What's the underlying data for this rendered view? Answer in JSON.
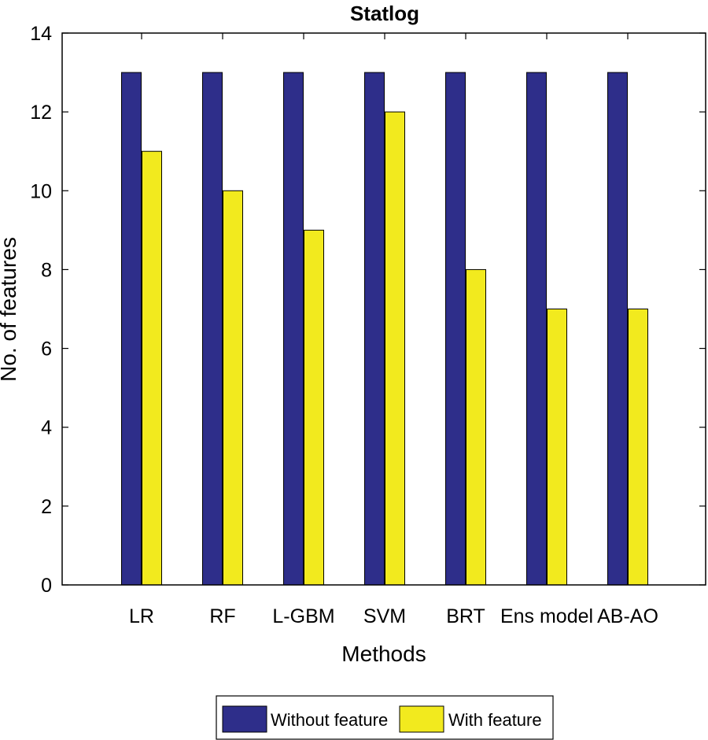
{
  "chart_data": {
    "type": "bar",
    "title": "Statlog",
    "xlabel": "Methods",
    "ylabel": "No. of features",
    "categories": [
      "LR",
      "RF",
      "L-GBM",
      "SVM",
      "BRT",
      "Ens model",
      "AB-AO"
    ],
    "series": [
      {
        "name": "Without feature",
        "values": [
          13,
          13,
          13,
          13,
          13,
          13,
          13
        ],
        "color": "#2e2e8a"
      },
      {
        "name": "With feature",
        "values": [
          11,
          10,
          9,
          12,
          8,
          7,
          7
        ],
        "color": "#f2ea1e"
      }
    ],
    "ylim": [
      0,
      14
    ],
    "yticks": [
      0,
      2,
      4,
      6,
      8,
      10,
      12,
      14
    ],
    "grid": false,
    "legend_position": "bottom-center"
  }
}
